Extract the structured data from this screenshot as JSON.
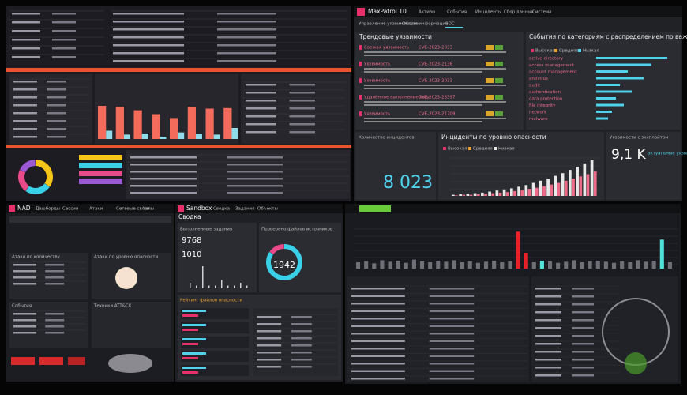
{
  "siem": {
    "bars_red": [
      60,
      58,
      52,
      45,
      38,
      58,
      55,
      56
    ],
    "bars_cyan": [
      15,
      8,
      10,
      4,
      12,
      10,
      8,
      20
    ],
    "donut": [
      35,
      25,
      22,
      18
    ],
    "donut_colors": [
      "#f5c518",
      "#3ad0e8",
      "#e84a8a",
      "#9b59d6"
    ],
    "bar_colors": [
      "#f26b5b",
      "#8fdbe8"
    ]
  },
  "mp": {
    "logo": "MaxPatrol 10",
    "nav": [
      "Активы",
      "События",
      "Инциденты",
      "Сбор данных",
      "Система"
    ],
    "subtabs": [
      "Управление уязвимостями",
      "Общая информация",
      "SOC"
    ],
    "trend": {
      "title": "Трендовые уязвимости",
      "items": [
        {
          "name": "Свежая уязвимость",
          "cve": "CVE-2023-2033"
        },
        {
          "name": "Уязвимость",
          "cve": "CVE-2023-2136"
        },
        {
          "name": "Уязвимость",
          "cve": "CVE-2023-2033"
        },
        {
          "name": "Удалённое выполнение кода",
          "cve": "CVE-2023-23397"
        },
        {
          "name": "Уязвимость",
          "cve": "CVE-2023-21709"
        }
      ]
    },
    "events": {
      "title": "События по категориям с распределением по важности",
      "legend": [
        "Высокая",
        "Средняя",
        "Низкая"
      ],
      "categories": [
        "active directory",
        "access management",
        "account management",
        "antivirus",
        "audit",
        "authentication",
        "data protection",
        "file integrity",
        "network",
        "malware"
      ],
      "values": [
        90,
        70,
        40,
        60,
        30,
        45,
        25,
        35,
        20,
        15
      ]
    },
    "incidents_count_title": "Количество инцидентов",
    "incidents_count": "8 023",
    "incidents": {
      "title": "Инциденты по уровню опасности",
      "legend": [
        "Высокая",
        "Средняя",
        "Низкая"
      ],
      "series": [
        {
          "color": "#e9e9e9",
          "values": [
            2,
            3,
            4,
            5,
            6,
            8,
            10,
            12,
            14,
            17,
            20,
            24,
            28,
            32,
            37,
            42,
            48,
            54,
            60,
            66
          ]
        },
        {
          "color": "#f06a8a",
          "values": [
            1,
            2,
            2,
            3,
            4,
            5,
            6,
            7,
            9,
            11,
            13,
            15,
            18,
            21,
            24,
            28,
            32,
            36,
            40,
            45
          ]
        }
      ]
    },
    "exploit_title": "Уязвимости с эксплойтом",
    "exploit_value": "9,1 K",
    "exploit_caption": "актуальные уязвимости"
  },
  "nad": {
    "logo": "NAD",
    "nav": [
      "Дашборды",
      "Сессии",
      "Атаки",
      "Сетевые связи",
      "Узлы"
    ],
    "panels": [
      "Атаки по количеству",
      "Атаки по уровню опасности",
      "События",
      "Техники ATT&CK"
    ]
  },
  "sandbox": {
    "logo": "Sandbox",
    "nav": [
      "Сводка",
      "Задания",
      "Объекты"
    ],
    "title": "Сводка",
    "tasks_title": "Выполненные задания",
    "tasks_total": "9768",
    "tasks_danger": "1010",
    "spark": [
      2,
      1,
      8,
      1,
      1,
      3,
      1,
      1,
      2,
      1
    ],
    "sources_title": "Проверено файлов источников",
    "sources_total": "1942",
    "donut": [
      85,
      15
    ],
    "donut_colors": [
      "#3ad0e8",
      "#e84a8a"
    ],
    "rating_title": "Рейтинг файлов опасности"
  },
  "timeline": {
    "series": [
      {
        "color": "#6f6f78",
        "values": [
          12,
          14,
          10,
          16,
          13,
          15,
          11,
          17,
          14,
          12,
          15,
          13,
          16,
          12,
          14,
          11,
          13,
          15,
          12,
          14,
          16,
          13,
          12,
          15,
          14,
          11,
          13,
          16,
          12,
          14,
          15,
          13,
          11,
          14,
          12,
          16,
          13,
          15,
          14,
          12
        ]
      },
      {
        "color": "#e8202a",
        "values": [
          0,
          0,
          0,
          0,
          0,
          0,
          0,
          0,
          0,
          0,
          0,
          0,
          0,
          0,
          0,
          0,
          0,
          0,
          0,
          0,
          70,
          30,
          0,
          0,
          0,
          0,
          0,
          0,
          0,
          0,
          0,
          0,
          0,
          0,
          0,
          0,
          0,
          0,
          0,
          0
        ]
      },
      {
        "color": "#4fe0d8",
        "values": [
          0,
          0,
          0,
          0,
          0,
          0,
          0,
          0,
          0,
          0,
          0,
          0,
          0,
          0,
          0,
          0,
          0,
          0,
          0,
          0,
          0,
          0,
          0,
          15,
          0,
          0,
          0,
          0,
          0,
          0,
          0,
          0,
          0,
          0,
          0,
          0,
          0,
          0,
          55,
          0
        ]
      }
    ]
  }
}
